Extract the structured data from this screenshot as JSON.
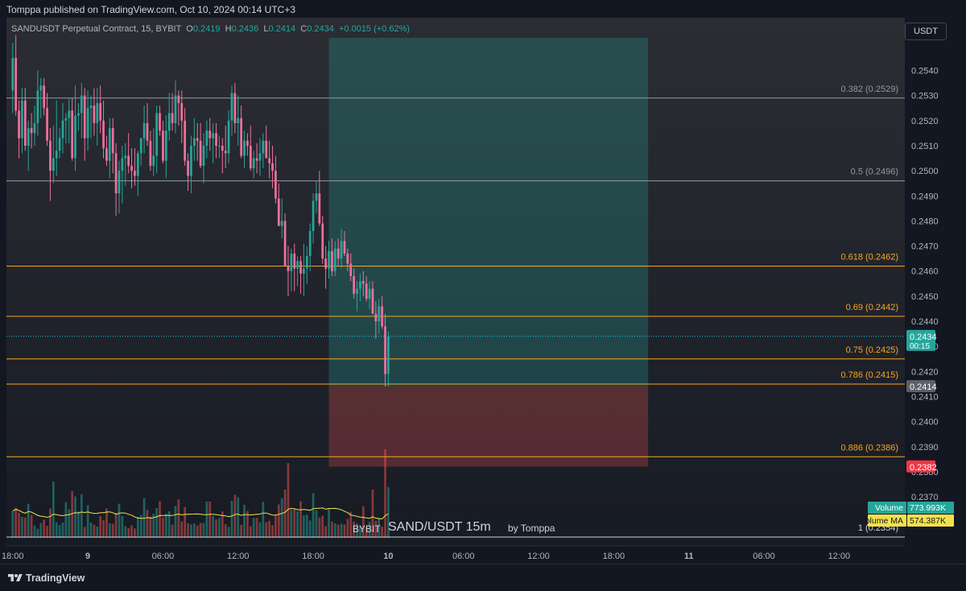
{
  "header": {
    "published": "Tomppa published on TradingView.com, Oct 10, 2024 00:14 UTC+3"
  },
  "legend": {
    "symbol": "SANDUSDT Perpetual Contract, 15, BYBIT",
    "o_label": "O",
    "o": "0.2419",
    "h_label": "H",
    "h": "0.2436",
    "l_label": "L",
    "l": "0.2414",
    "c_label": "C",
    "c": "0.2434",
    "change": "+0.0015 (+0.62%)"
  },
  "currency_button": "USDT",
  "watermark": {
    "exchange": "BYBIT",
    "pair": "SAND/USDT 15m",
    "author": "by Tomppa"
  },
  "footer": {
    "brand": "TradingView"
  },
  "colors": {
    "up": "#26a69a",
    "down": "#ef5350",
    "fib_orange": "#f5a623",
    "fib_gray": "#9598a1",
    "volume_ma": "#f2e14a",
    "profit_zone": "#26a69a",
    "loss_zone": "#ef5350"
  },
  "chart_data": {
    "type": "candlestick",
    "symbol": "SANDUSDT",
    "interval": "15",
    "y_axis": {
      "ticks": [
        0.237,
        0.238,
        0.239,
        0.24,
        0.241,
        0.242,
        0.243,
        0.244,
        0.245,
        0.246,
        0.247,
        0.248,
        0.249,
        0.25,
        0.251,
        0.252,
        0.253,
        0.254
      ],
      "range": [
        0.2354,
        0.2553
      ]
    },
    "x_axis": {
      "ticks": [
        {
          "label": "18:00",
          "bar": 0
        },
        {
          "label": "9",
          "bar": 24
        },
        {
          "label": "06:00",
          "bar": 48
        },
        {
          "label": "12:00",
          "bar": 72
        },
        {
          "label": "18:00",
          "bar": 96
        },
        {
          "label": "10",
          "bar": 120
        },
        {
          "label": "06:00",
          "bar": 144
        },
        {
          "label": "12:00",
          "bar": 168
        },
        {
          "label": "18:00",
          "bar": 192
        },
        {
          "label": "11",
          "bar": 216
        },
        {
          "label": "06:00",
          "bar": 240
        },
        {
          "label": "12:00",
          "bar": 264
        }
      ],
      "range_bars": [
        -2,
        285
      ]
    },
    "fib_levels": [
      {
        "label": "0.382 (0.2529)",
        "price": 0.2529,
        "color": "gray"
      },
      {
        "label": "0.5 (0.2496)",
        "price": 0.2496,
        "color": "gray"
      },
      {
        "label": "0.618 (0.2462)",
        "price": 0.2462,
        "color": "orange"
      },
      {
        "label": "0.69 (0.2442)",
        "price": 0.2442,
        "color": "orange"
      },
      {
        "label": "0.75 (0.2425)",
        "price": 0.2425,
        "color": "orange"
      },
      {
        "label": "0.786 (0.2415)",
        "price": 0.2415,
        "color": "orange"
      },
      {
        "label": "0.886 (0.2386)",
        "price": 0.2386,
        "color": "orange"
      },
      {
        "label": "1 (0.2354)",
        "price": 0.2354,
        "color": "white"
      }
    ],
    "position": {
      "entry": 0.2414,
      "target": 0.2553,
      "stop": 0.2382,
      "start_bar": 101,
      "end_bar": 203
    },
    "price_tags": [
      {
        "price": 0.2434,
        "label": "0.2434",
        "sub": "00:15",
        "kind": "last"
      },
      {
        "price": 0.2414,
        "label": "0.2414",
        "kind": "entry"
      },
      {
        "price": 0.2382,
        "label": "0.2382",
        "kind": "stop"
      }
    ],
    "volume_tags": [
      {
        "name": "Volume",
        "value": "773.993K"
      },
      {
        "name": "Volume MA",
        "value": "574.387K"
      }
    ],
    "candles": [
      [
        0.2532,
        0.2551,
        0.2523,
        0.2545,
        74
      ],
      [
        0.2545,
        0.2554,
        0.2522,
        0.2524,
        83
      ],
      [
        0.2524,
        0.2528,
        0.2505,
        0.2513,
        69
      ],
      [
        0.2513,
        0.2533,
        0.2507,
        0.2528,
        58
      ],
      [
        0.2528,
        0.2533,
        0.2508,
        0.251,
        56
      ],
      [
        0.251,
        0.252,
        0.25,
        0.2517,
        94
      ],
      [
        0.2517,
        0.2523,
        0.2509,
        0.2515,
        63
      ],
      [
        0.2515,
        0.2526,
        0.251,
        0.2519,
        34
      ],
      [
        0.2519,
        0.254,
        0.2514,
        0.2532,
        25
      ],
      [
        0.2532,
        0.2537,
        0.2521,
        0.2534,
        41
      ],
      [
        0.2534,
        0.2537,
        0.2522,
        0.2525,
        50
      ],
      [
        0.2525,
        0.2531,
        0.251,
        0.2512,
        33
      ],
      [
        0.2512,
        0.2517,
        0.2488,
        0.25,
        81
      ],
      [
        0.25,
        0.2518,
        0.2495,
        0.2505,
        155
      ],
      [
        0.2505,
        0.2528,
        0.2498,
        0.2508,
        43
      ],
      [
        0.2508,
        0.2517,
        0.2505,
        0.2513,
        35
      ],
      [
        0.2513,
        0.2527,
        0.2507,
        0.252,
        42
      ],
      [
        0.252,
        0.2523,
        0.2511,
        0.2521,
        98
      ],
      [
        0.2521,
        0.2529,
        0.2511,
        0.2524,
        79
      ],
      [
        0.2524,
        0.2529,
        0.2504,
        0.2505,
        129
      ],
      [
        0.2505,
        0.2534,
        0.25,
        0.2522,
        114
      ],
      [
        0.2522,
        0.2527,
        0.2516,
        0.2523,
        73
      ],
      [
        0.2523,
        0.2535,
        0.2513,
        0.253,
        120
      ],
      [
        0.253,
        0.2533,
        0.2504,
        0.2513,
        30
      ],
      [
        0.2513,
        0.2532,
        0.2508,
        0.2525,
        90
      ],
      [
        0.2525,
        0.253,
        0.2513,
        0.2526,
        42
      ],
      [
        0.2526,
        0.2533,
        0.2514,
        0.2519,
        36
      ],
      [
        0.2519,
        0.2533,
        0.251,
        0.2527,
        31
      ],
      [
        0.2527,
        0.2534,
        0.2515,
        0.252,
        60
      ],
      [
        0.252,
        0.2528,
        0.2505,
        0.2509,
        49
      ],
      [
        0.2509,
        0.2514,
        0.2502,
        0.2504,
        81
      ],
      [
        0.2504,
        0.2521,
        0.2497,
        0.2517,
        40
      ],
      [
        0.2517,
        0.2521,
        0.2499,
        0.2507,
        39
      ],
      [
        0.2507,
        0.2511,
        0.2482,
        0.2491,
        69
      ],
      [
        0.2491,
        0.2504,
        0.2483,
        0.25,
        94
      ],
      [
        0.25,
        0.251,
        0.2487,
        0.2505,
        60
      ],
      [
        0.2505,
        0.2511,
        0.2494,
        0.2506,
        32
      ],
      [
        0.2506,
        0.2515,
        0.2499,
        0.2502,
        27
      ],
      [
        0.2502,
        0.2509,
        0.2493,
        0.25,
        35
      ],
      [
        0.25,
        0.2509,
        0.2494,
        0.2498,
        26
      ],
      [
        0.2498,
        0.2508,
        0.249,
        0.2507,
        58
      ],
      [
        0.2507,
        0.2513,
        0.2502,
        0.2513,
        63
      ],
      [
        0.2513,
        0.2526,
        0.2507,
        0.2519,
        110
      ],
      [
        0.2519,
        0.2527,
        0.251,
        0.2512,
        77
      ],
      [
        0.2512,
        0.2516,
        0.25,
        0.2502,
        59
      ],
      [
        0.2502,
        0.2517,
        0.2498,
        0.2506,
        66
      ],
      [
        0.2506,
        0.2526,
        0.2499,
        0.2523,
        82
      ],
      [
        0.2523,
        0.2526,
        0.2514,
        0.2516,
        101
      ],
      [
        0.2516,
        0.252,
        0.2503,
        0.2504,
        56
      ],
      [
        0.2504,
        0.2522,
        0.2497,
        0.2516,
        66
      ],
      [
        0.2516,
        0.2531,
        0.2512,
        0.2523,
        73
      ],
      [
        0.2523,
        0.2531,
        0.2516,
        0.2519,
        36
      ],
      [
        0.2519,
        0.2536,
        0.2515,
        0.253,
        88
      ],
      [
        0.253,
        0.2532,
        0.2518,
        0.2527,
        106
      ],
      [
        0.2527,
        0.2532,
        0.2511,
        0.252,
        45
      ],
      [
        0.252,
        0.2525,
        0.2502,
        0.2504,
        85
      ],
      [
        0.2504,
        0.2507,
        0.2492,
        0.2498,
        40
      ],
      [
        0.2498,
        0.2514,
        0.2491,
        0.251,
        37
      ],
      [
        0.251,
        0.2521,
        0.2504,
        0.2513,
        40
      ],
      [
        0.2513,
        0.2519,
        0.2504,
        0.2512,
        34
      ],
      [
        0.2512,
        0.2519,
        0.2501,
        0.2502,
        41
      ],
      [
        0.2502,
        0.2515,
        0.2495,
        0.251,
        41
      ],
      [
        0.251,
        0.252,
        0.2505,
        0.2516,
        100
      ],
      [
        0.2516,
        0.2521,
        0.2508,
        0.2513,
        100
      ],
      [
        0.2513,
        0.2519,
        0.2503,
        0.2515,
        60
      ],
      [
        0.2515,
        0.2519,
        0.2505,
        0.251,
        51
      ],
      [
        0.251,
        0.2514,
        0.2505,
        0.251,
        55
      ],
      [
        0.251,
        0.2513,
        0.2499,
        0.2508,
        73
      ],
      [
        0.2508,
        0.2518,
        0.2501,
        0.2507,
        38
      ],
      [
        0.2507,
        0.2524,
        0.2503,
        0.252,
        30
      ],
      [
        0.252,
        0.2534,
        0.2514,
        0.2531,
        102
      ],
      [
        0.2531,
        0.2535,
        0.2515,
        0.2519,
        119
      ],
      [
        0.2519,
        0.253,
        0.251,
        0.2521,
        112
      ],
      [
        0.2521,
        0.2526,
        0.2505,
        0.2506,
        36
      ],
      [
        0.2506,
        0.2516,
        0.2501,
        0.2512,
        91
      ],
      [
        0.2512,
        0.2515,
        0.2506,
        0.251,
        74
      ],
      [
        0.251,
        0.2518,
        0.25,
        0.2501,
        32
      ],
      [
        0.2501,
        0.2508,
        0.2497,
        0.2505,
        55
      ],
      [
        0.2505,
        0.2511,
        0.2499,
        0.2504,
        55
      ],
      [
        0.2504,
        0.2513,
        0.2498,
        0.2507,
        43
      ],
      [
        0.2507,
        0.2515,
        0.2501,
        0.2512,
        99
      ],
      [
        0.2512,
        0.2518,
        0.2505,
        0.2505,
        43
      ],
      [
        0.2505,
        0.2512,
        0.2497,
        0.2503,
        47
      ],
      [
        0.2503,
        0.251,
        0.2493,
        0.25,
        35
      ],
      [
        0.25,
        0.2506,
        0.2487,
        0.2489,
        64
      ],
      [
        0.2489,
        0.2495,
        0.2478,
        0.2478,
        92
      ],
      [
        0.2478,
        0.2489,
        0.2473,
        0.248,
        109
      ],
      [
        0.248,
        0.2483,
        0.2462,
        0.2462,
        133
      ],
      [
        0.2462,
        0.247,
        0.245,
        0.246,
        206
      ],
      [
        0.246,
        0.2469,
        0.2452,
        0.2467,
        77
      ],
      [
        0.2467,
        0.2471,
        0.2452,
        0.2461,
        79
      ],
      [
        0.2461,
        0.2466,
        0.2454,
        0.2464,
        73
      ],
      [
        0.2464,
        0.2466,
        0.2451,
        0.2459,
        101
      ],
      [
        0.2459,
        0.2471,
        0.245,
        0.2461,
        62
      ],
      [
        0.2461,
        0.247,
        0.2455,
        0.2466,
        64
      ],
      [
        0.2466,
        0.2479,
        0.246,
        0.2476,
        48
      ],
      [
        0.2476,
        0.2491,
        0.2471,
        0.2488,
        123
      ],
      [
        0.2488,
        0.2496,
        0.2483,
        0.2491,
        76
      ],
      [
        0.2491,
        0.25,
        0.2478,
        0.2479,
        56
      ],
      [
        0.2479,
        0.2482,
        0.2463,
        0.2465,
        61
      ],
      [
        0.2465,
        0.247,
        0.2453,
        0.2461,
        32
      ],
      [
        0.2461,
        0.2472,
        0.2457,
        0.2468,
        82
      ],
      [
        0.2468,
        0.2473,
        0.2458,
        0.246,
        45
      ],
      [
        0.246,
        0.2472,
        0.2458,
        0.2469,
        40
      ],
      [
        0.2469,
        0.2473,
        0.2462,
        0.2465,
        36
      ],
      [
        0.2465,
        0.2477,
        0.2461,
        0.2472,
        39
      ],
      [
        0.2472,
        0.2476,
        0.2466,
        0.2467,
        37
      ],
      [
        0.2467,
        0.2469,
        0.246,
        0.2463,
        52
      ],
      [
        0.2463,
        0.2467,
        0.2456,
        0.2458,
        72
      ],
      [
        0.2458,
        0.2461,
        0.2449,
        0.2451,
        45
      ],
      [
        0.2451,
        0.2456,
        0.2444,
        0.2453,
        40
      ],
      [
        0.2453,
        0.2459,
        0.2448,
        0.2456,
        33
      ],
      [
        0.2456,
        0.246,
        0.245,
        0.2455,
        87
      ],
      [
        0.2455,
        0.2458,
        0.2448,
        0.2449,
        30
      ],
      [
        0.2449,
        0.2456,
        0.2445,
        0.2453,
        44
      ],
      [
        0.2453,
        0.2456,
        0.2443,
        0.2443,
        133
      ],
      [
        0.2443,
        0.2448,
        0.2433,
        0.244,
        47
      ],
      [
        0.244,
        0.2449,
        0.2435,
        0.2446,
        55
      ],
      [
        0.2446,
        0.245,
        0.2437,
        0.2438,
        31
      ],
      [
        0.2438,
        0.2443,
        0.2414,
        0.2419,
        244
      ],
      [
        0.2419,
        0.2436,
        0.2414,
        0.2434,
        140
      ]
    ]
  }
}
